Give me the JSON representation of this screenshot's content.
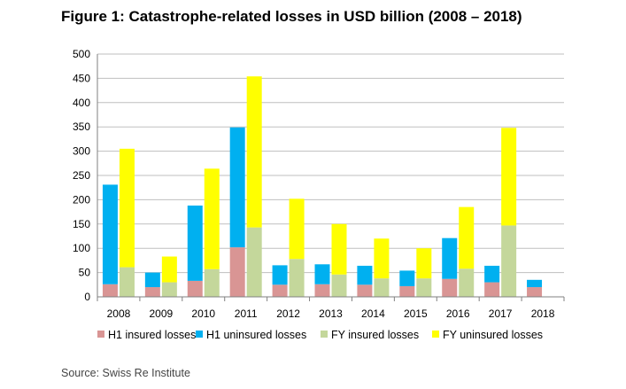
{
  "title": "Figure 1: Catastrophe-related losses in USD billion (2008 – 2018)",
  "source": "Source: Swiss Re Institute",
  "chart_data": {
    "type": "bar",
    "stacked": true,
    "title": "Figure 1: Catastrophe-related losses in USD billion (2008 – 2018)",
    "xlabel": "",
    "ylabel": "",
    "ylim": [
      0,
      500
    ],
    "yticks": [
      0,
      50,
      100,
      150,
      200,
      250,
      300,
      350,
      400,
      450,
      500
    ],
    "grid": true,
    "legend_position": "bottom",
    "categories": [
      "2008",
      "2009",
      "2010",
      "2011",
      "2012",
      "2013",
      "2014",
      "2015",
      "2016",
      "2017",
      "2018"
    ],
    "groups": [
      {
        "name": "H1",
        "series": [
          {
            "name": "H1 insured losses",
            "color": "#d99594",
            "values": [
              26,
              20,
              33,
              102,
              25,
              26,
              25,
              22,
              37,
              30,
              20
            ]
          },
          {
            "name": "H1 uninsured losses",
            "color": "#00b0f0",
            "values": [
              205,
              30,
              155,
              247,
              40,
              41,
              39,
              32,
              84,
              34,
              15
            ]
          }
        ]
      },
      {
        "name": "FY",
        "series": [
          {
            "name": "FY insured losses",
            "color": "#c4d79b",
            "values": [
              61,
              30,
              57,
              143,
              78,
              46,
              38,
              38,
              58,
              147,
              null
            ]
          },
          {
            "name": "FY uninsured losses",
            "color": "#ffff00",
            "values": [
              244,
              53,
              207,
              311,
              124,
              104,
              82,
              62,
              127,
              201,
              null
            ]
          }
        ]
      }
    ]
  }
}
